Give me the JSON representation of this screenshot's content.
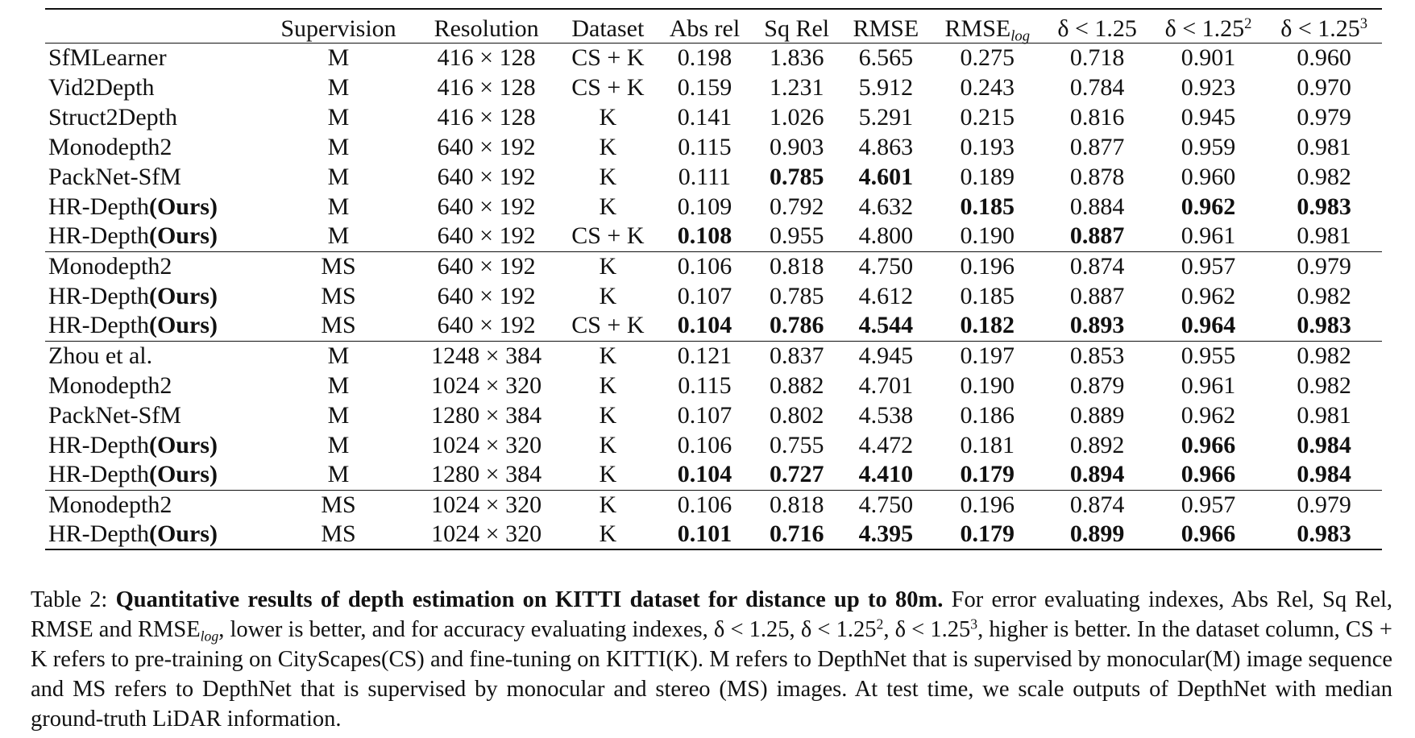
{
  "table": {
    "columns": [
      {
        "key": "method",
        "label": ""
      },
      {
        "key": "supervision",
        "label": "Supervision"
      },
      {
        "key": "resolution",
        "label": "Resolution"
      },
      {
        "key": "dataset",
        "label": "Dataset"
      },
      {
        "key": "abs_rel",
        "label": "Abs rel"
      },
      {
        "key": "sq_rel",
        "label": "Sq Rel"
      },
      {
        "key": "rmse",
        "label": "RMSE"
      },
      {
        "key": "rmse_log",
        "label": "RMSE",
        "sub": "log"
      },
      {
        "key": "d1",
        "label": "δ < 1.25"
      },
      {
        "key": "d2",
        "label": "δ < 1.25",
        "sup": "2"
      },
      {
        "key": "d3",
        "label": "δ < 1.25",
        "sup": "3"
      }
    ],
    "groups": [
      {
        "rows": [
          {
            "method": "SfMLearner",
            "supervision": "M",
            "resolution": "416 × 128",
            "dataset": "CS + K",
            "abs_rel": "0.198",
            "sq_rel": "1.836",
            "rmse": "6.565",
            "rmse_log": "0.275",
            "d1": "0.718",
            "d2": "0.901",
            "d3": "0.960",
            "bold": []
          },
          {
            "method": "Vid2Depth",
            "supervision": "M",
            "resolution": "416 × 128",
            "dataset": "CS + K",
            "abs_rel": "0.159",
            "sq_rel": "1.231",
            "rmse": "5.912",
            "rmse_log": "0.243",
            "d1": "0.784",
            "d2": "0.923",
            "d3": "0.970",
            "bold": []
          },
          {
            "method": "Struct2Depth",
            "supervision": "M",
            "resolution": "416 × 128",
            "dataset": "K",
            "abs_rel": "0.141",
            "sq_rel": "1.026",
            "rmse": "5.291",
            "rmse_log": "0.215",
            "d1": "0.816",
            "d2": "0.945",
            "d3": "0.979",
            "bold": []
          },
          {
            "method": "Monodepth2",
            "supervision": "M",
            "resolution": "640 × 192",
            "dataset": "K",
            "abs_rel": "0.115",
            "sq_rel": "0.903",
            "rmse": "4.863",
            "rmse_log": "0.193",
            "d1": "0.877",
            "d2": "0.959",
            "d3": "0.981",
            "bold": []
          },
          {
            "method": "PackNet-SfM",
            "supervision": "M",
            "resolution": "640 × 192",
            "dataset": "K",
            "abs_rel": "0.111",
            "sq_rel": "0.785",
            "rmse": "4.601",
            "rmse_log": "0.189",
            "d1": "0.878",
            "d2": "0.960",
            "d3": "0.982",
            "bold": [
              "sq_rel",
              "rmse"
            ]
          },
          {
            "method": "HR-Depth",
            "ours": "(Ours)",
            "supervision": "M",
            "resolution": "640 × 192",
            "dataset": "K",
            "abs_rel": "0.109",
            "sq_rel": "0.792",
            "rmse": "4.632",
            "rmse_log": "0.185",
            "d1": "0.884",
            "d2": "0.962",
            "d3": "0.983",
            "bold": [
              "rmse_log",
              "d2",
              "d3"
            ]
          },
          {
            "method": "HR-Depth",
            "ours": "(Ours)",
            "supervision": "M",
            "resolution": "640 × 192",
            "dataset": "CS + K",
            "abs_rel": "0.108",
            "sq_rel": "0.955",
            "rmse": "4.800",
            "rmse_log": "0.190",
            "d1": "0.887",
            "d2": "0.961",
            "d3": "0.981",
            "bold": [
              "abs_rel",
              "d1"
            ]
          }
        ]
      },
      {
        "rows": [
          {
            "method": "Monodepth2",
            "supervision": "MS",
            "resolution": "640 × 192",
            "dataset": "K",
            "abs_rel": "0.106",
            "sq_rel": "0.818",
            "rmse": "4.750",
            "rmse_log": "0.196",
            "d1": "0.874",
            "d2": "0.957",
            "d3": "0.979",
            "bold": []
          },
          {
            "method": "HR-Depth",
            "ours": "(Ours)",
            "supervision": "MS",
            "resolution": "640 × 192",
            "dataset": "K",
            "abs_rel": "0.107",
            "sq_rel": "0.785",
            "rmse": "4.612",
            "rmse_log": "0.185",
            "d1": "0.887",
            "d2": "0.962",
            "d3": "0.982",
            "bold": []
          },
          {
            "method": "HR-Depth",
            "ours": "(Ours)",
            "supervision": "MS",
            "resolution": "640 × 192",
            "dataset": "CS + K",
            "abs_rel": "0.104",
            "sq_rel": "0.786",
            "rmse": "4.544",
            "rmse_log": "0.182",
            "d1": "0.893",
            "d2": "0.964",
            "d3": "0.983",
            "bold": [
              "abs_rel",
              "sq_rel",
              "rmse",
              "rmse_log",
              "d1",
              "d2",
              "d3"
            ]
          }
        ]
      },
      {
        "rows": [
          {
            "method": "Zhou et al.",
            "supervision": "M",
            "resolution": "1248 × 384",
            "dataset": "K",
            "abs_rel": "0.121",
            "sq_rel": "0.837",
            "rmse": "4.945",
            "rmse_log": "0.197",
            "d1": "0.853",
            "d2": "0.955",
            "d3": "0.982",
            "bold": []
          },
          {
            "method": "Monodepth2",
            "supervision": "M",
            "resolution": "1024 × 320",
            "dataset": "K",
            "abs_rel": "0.115",
            "sq_rel": "0.882",
            "rmse": "4.701",
            "rmse_log": "0.190",
            "d1": "0.879",
            "d2": "0.961",
            "d3": "0.982",
            "bold": []
          },
          {
            "method": "PackNet-SfM",
            "supervision": "M",
            "resolution": "1280 × 384",
            "dataset": "K",
            "abs_rel": "0.107",
            "sq_rel": "0.802",
            "rmse": "4.538",
            "rmse_log": "0.186",
            "d1": "0.889",
            "d2": "0.962",
            "d3": "0.981",
            "bold": []
          },
          {
            "method": "HR-Depth",
            "ours": "(Ours)",
            "supervision": "M",
            "resolution": "1024 × 320",
            "dataset": "K",
            "abs_rel": "0.106",
            "sq_rel": "0.755",
            "rmse": "4.472",
            "rmse_log": "0.181",
            "d1": "0.892",
            "d2": "0.966",
            "d3": "0.984",
            "bold": [
              "d2",
              "d3"
            ]
          },
          {
            "method": "HR-Depth",
            "ours": "(Ours)",
            "supervision": "M",
            "resolution": "1280 × 384",
            "dataset": "K",
            "abs_rel": "0.104",
            "sq_rel": "0.727",
            "rmse": "4.410",
            "rmse_log": "0.179",
            "d1": "0.894",
            "d2": "0.966",
            "d3": "0.984",
            "bold": [
              "abs_rel",
              "sq_rel",
              "rmse",
              "rmse_log",
              "d1",
              "d2",
              "d3"
            ]
          }
        ]
      },
      {
        "rows": [
          {
            "method": "Monodepth2",
            "supervision": "MS",
            "resolution": "1024 × 320",
            "dataset": "K",
            "abs_rel": "0.106",
            "sq_rel": "0.818",
            "rmse": "4.750",
            "rmse_log": "0.196",
            "d1": "0.874",
            "d2": "0.957",
            "d3": "0.979",
            "bold": []
          },
          {
            "method": "HR-Depth",
            "ours": "(Ours)",
            "supervision": "MS",
            "resolution": "1024 × 320",
            "dataset": "K",
            "abs_rel": "0.101",
            "sq_rel": "0.716",
            "rmse": "4.395",
            "rmse_log": "0.179",
            "d1": "0.899",
            "d2": "0.966",
            "d3": "0.983",
            "bold": [
              "abs_rel",
              "sq_rel",
              "rmse",
              "rmse_log",
              "d1",
              "d2",
              "d3"
            ]
          }
        ]
      }
    ]
  },
  "caption": {
    "label": "Table 2:",
    "bold_title": "Quantitative results of depth estimation on KITTI dataset for distance up to 80m.",
    "seg1": "For error evaluating indexes, Abs Rel, Sq Rel, RMSE and RMSE",
    "seg1_sub": "log",
    "seg2": ", lower is better, and for accuracy evaluating indexes, ",
    "d1": "δ < 1.25, ",
    "d2": "δ < 1.25",
    "d2_sup": "2",
    "d3": ", δ < 1.25",
    "d3_sup": "3",
    "seg3": ", higher is better. In the dataset column, CS + K refers to pre-training on CityScapes(CS) and fine-tuning on KITTI(K). M refers to DepthNet that is supervised by monocular(M) image sequence and MS refers to DepthNet that is supervised by monocular and stereo (MS) images. At test time, we scale outputs of DepthNet with median ground-truth LiDAR information."
  }
}
